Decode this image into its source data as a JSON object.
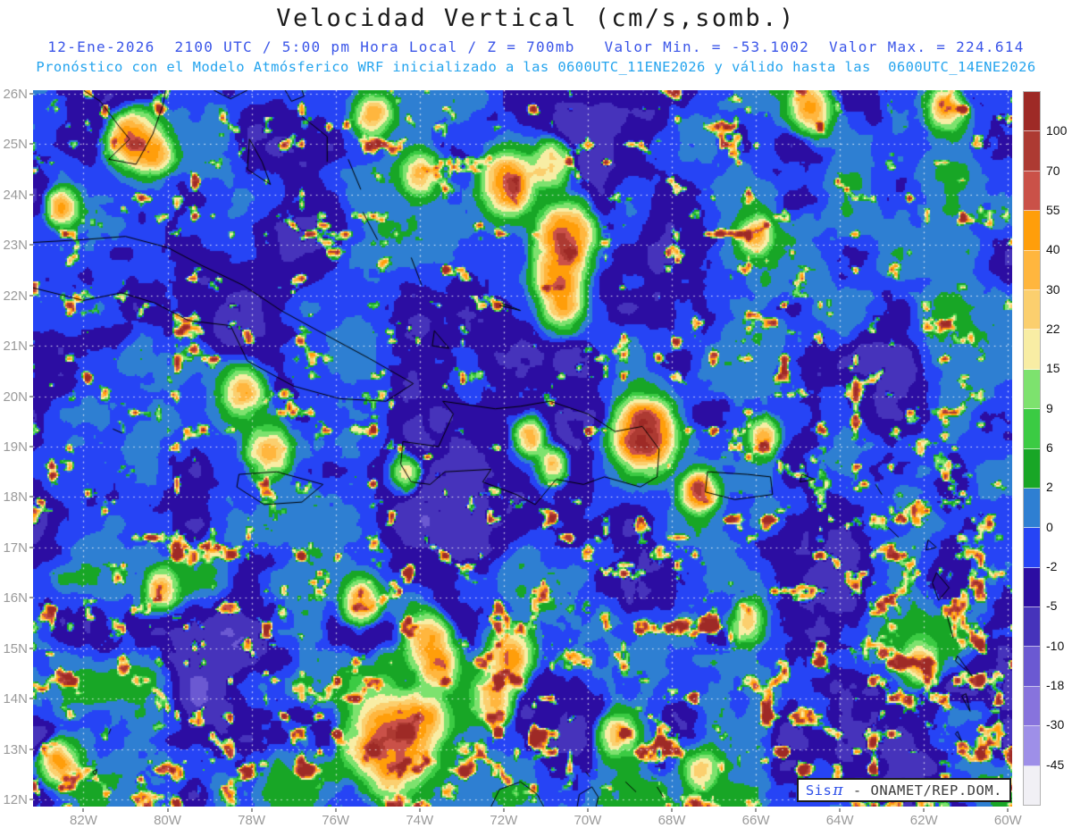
{
  "header": {
    "title": "Velocidad Vertical (cm/s,somb.)",
    "line2": "12-Ene-2026  2100 UTC / 5:00 pm Hora Local / Z = 700mb   Valor Min. = -53.1002  Valor Max. = 224.614",
    "line3": "Pronóstico con el Modelo Atmósferico WRF inicializado a las 0600UTC_11ENE2026 y válido hasta las  0600UTC_14ENE2026"
  },
  "watermark": {
    "brand": "Sis",
    "pi": "π",
    "org": " - ONAMET/REP.DOM."
  },
  "colors": {
    "title": "#1a1a1a",
    "header_blue": "#3a55e8",
    "header_cyan": "#25a4ee",
    "axis_label_gray": "#9a9a9a",
    "colorbar_label": "#111111",
    "coastline": "#000000",
    "gridline": "#ffffff",
    "watermark_brand_blue": "#2d4fe8",
    "watermark_text_gray": "#3c3c3c"
  },
  "chart_data": {
    "type": "heatmap",
    "title": "Velocidad Vertical (cm/s,somb.)",
    "variable": "Velocidad Vertical",
    "units": "cm/s",
    "shading_note": "somb.",
    "level": "700mb",
    "valid_time": "12-Ene-2026 2100 UTC / 5:00 pm Hora Local",
    "model": "WRF",
    "initialized": "0600UTC_11ENE2026",
    "valid_until": "0600UTC_14ENE2026",
    "value_min": -53.1002,
    "value_max": 224.614,
    "lon_range": [
      -83.2,
      -59.9
    ],
    "lat_range": [
      11.86,
      26.07
    ],
    "x_tick_labels": [
      "82W",
      "80W",
      "78W",
      "76W",
      "74W",
      "72W",
      "70W",
      "68W",
      "66W",
      "64W",
      "62W",
      "60W"
    ],
    "x_tick_lons": [
      -82,
      -80,
      -78,
      -76,
      -74,
      -72,
      -70,
      -68,
      -66,
      -64,
      -62,
      -60
    ],
    "y_tick_labels": [
      "26N",
      "25N",
      "24N",
      "23N",
      "22N",
      "21N",
      "20N",
      "19N",
      "18N",
      "17N",
      "16N",
      "15N",
      "14N",
      "13N",
      "12N"
    ],
    "y_tick_lats": [
      26,
      25,
      24,
      23,
      22,
      21,
      20,
      19,
      18,
      17,
      16,
      15,
      14,
      13,
      12
    ],
    "grid": {
      "lat_step_deg": 1,
      "lon_step_deg": 2,
      "style": "white dotted"
    },
    "legend_position": "right",
    "colorbar": {
      "levels": [
        100,
        70,
        55,
        40,
        30,
        22,
        15,
        9,
        6,
        2,
        0,
        -2,
        -5,
        -10,
        -18,
        -30,
        -45
      ],
      "colors_top_to_bottom": [
        "#9e2a26",
        "#ad3a32",
        "#ca5148",
        "#ff9e0a",
        "#ffb63e",
        "#fbcf6e",
        "#f8eda4",
        "#7de26e",
        "#3bcb43",
        "#18a626",
        "#2e7fd2",
        "#2644f5",
        "#2c0da2",
        "#4633bb",
        "#6b59d2",
        "#8773dd",
        "#9e8fe8",
        "#f1f0f5"
      ]
    },
    "updraft_cells_approx": [
      [
        25.1,
        -80.85,
        95,
        0.45
      ],
      [
        24.8,
        -80.3,
        55,
        0.35
      ],
      [
        23.75,
        -82.5,
        70,
        0.3
      ],
      [
        25.6,
        -75.1,
        55,
        0.35
      ],
      [
        24.4,
        -74.0,
        45,
        0.35
      ],
      [
        25.7,
        -64.7,
        65,
        0.4
      ],
      [
        25.7,
        -61.5,
        55,
        0.4
      ],
      [
        23.2,
        -66.0,
        50,
        0.32
      ],
      [
        24.2,
        -71.9,
        110,
        0.45
      ],
      [
        23.2,
        -70.5,
        120,
        0.5
      ],
      [
        22.5,
        -70.7,
        90,
        0.45
      ],
      [
        21.8,
        -70.6,
        60,
        0.4
      ],
      [
        24.6,
        -70.9,
        55,
        0.4
      ],
      [
        19.26,
        -68.65,
        190,
        0.5
      ],
      [
        19.2,
        -71.4,
        60,
        0.3
      ],
      [
        18.65,
        -70.85,
        55,
        0.3
      ],
      [
        18.12,
        -67.35,
        120,
        0.3
      ],
      [
        19.2,
        -65.8,
        50,
        0.3
      ],
      [
        18.9,
        -77.6,
        65,
        0.4
      ],
      [
        20.1,
        -78.2,
        60,
        0.4
      ],
      [
        18.45,
        -74.35,
        45,
        0.3
      ],
      [
        16.2,
        -80.1,
        50,
        0.35
      ],
      [
        15.9,
        -75.4,
        55,
        0.35
      ],
      [
        15.2,
        -73.8,
        65,
        0.4
      ],
      [
        14.7,
        -73.6,
        70,
        0.4
      ],
      [
        14.8,
        -71.8,
        75,
        0.4
      ],
      [
        14.0,
        -72.2,
        55,
        0.4
      ],
      [
        13.1,
        -74.7,
        110,
        0.75
      ],
      [
        13.6,
        -73.9,
        60,
        0.45
      ],
      [
        14.7,
        -62.1,
        60,
        0.35
      ],
      [
        15.5,
        -66.2,
        50,
        0.35
      ],
      [
        13.3,
        -69.3,
        50,
        0.4
      ],
      [
        12.6,
        -67.3,
        45,
        0.35
      ],
      [
        12.75,
        -82.6,
        70,
        0.35
      ]
    ],
    "subsidence_patches_approx": [
      [
        18.0,
        -73.5,
        -9,
        1.5
      ],
      [
        21.6,
        -78.3,
        -7,
        1.2
      ],
      [
        25.6,
        -81.5,
        -7,
        1.1
      ],
      [
        16.6,
        -64.5,
        -8,
        1.4
      ],
      [
        13.6,
        -70.5,
        -6,
        1.4
      ],
      [
        14.3,
        -78.8,
        -6,
        1.3
      ],
      [
        23.4,
        -76.8,
        -6,
        1.0
      ],
      [
        20.1,
        -63.1,
        -6,
        1.1
      ],
      [
        25.3,
        -70.3,
        -6,
        1.1
      ],
      [
        12.8,
        -62.5,
        -6,
        1.2
      ]
    ]
  },
  "map": {
    "coastlines": [
      [
        [
          23.05,
          -83.2
        ],
        [
          23.1,
          -82.1
        ],
        [
          23.17,
          -81.0
        ],
        [
          22.95,
          -80.0
        ],
        [
          22.6,
          -79.2
        ],
        [
          22.2,
          -78.2
        ],
        [
          21.7,
          -77.3
        ],
        [
          21.2,
          -76.2
        ],
        [
          20.75,
          -75.2
        ],
        [
          20.25,
          -74.15
        ],
        [
          19.9,
          -74.8
        ],
        [
          19.95,
          -75.9
        ],
        [
          20.2,
          -77.0
        ],
        [
          20.7,
          -78.1
        ],
        [
          21.4,
          -78.5
        ],
        [
          21.5,
          -79.5
        ],
        [
          21.85,
          -80.3
        ],
        [
          22.05,
          -81.1
        ],
        [
          21.9,
          -82.0
        ],
        [
          22.15,
          -83.2
        ]
      ],
      [
        [
          26.07,
          -82.0
        ],
        [
          25.85,
          -81.6
        ],
        [
          25.35,
          -81.15
        ],
        [
          25.1,
          -80.9
        ],
        [
          24.7,
          -81.4
        ],
        [
          24.6,
          -80.75
        ],
        [
          25.2,
          -80.35
        ],
        [
          25.8,
          -80.1
        ],
        [
          26.07,
          -80.05
        ]
      ],
      [
        [
          26.07,
          -78.9
        ],
        [
          25.9,
          -78.5
        ],
        [
          26.07,
          -78.1
        ]
      ],
      [
        [
          26.07,
          -77.2
        ],
        [
          25.85,
          -77.05
        ],
        [
          25.95,
          -76.75
        ],
        [
          26.07,
          -76.8
        ]
      ],
      [
        [
          25.1,
          -78.05
        ],
        [
          24.65,
          -77.75
        ],
        [
          24.2,
          -77.55
        ],
        [
          24.5,
          -78.1
        ],
        [
          25.1,
          -78.05
        ]
      ],
      [
        [
          25.55,
          -76.8
        ],
        [
          25.15,
          -76.2
        ],
        [
          24.65,
          -76.2
        ]
      ],
      [
        [
          24.7,
          -75.7
        ],
        [
          24.1,
          -75.4
        ]
      ],
      [
        [
          23.65,
          -75.35
        ],
        [
          23.1,
          -75.0
        ]
      ],
      [
        [
          22.75,
          -74.2
        ],
        [
          22.2,
          -73.95
        ]
      ],
      [
        [
          21.3,
          -73.65
        ],
        [
          20.95,
          -73.3
        ],
        [
          21.0,
          -73.7
        ],
        [
          21.3,
          -73.65
        ]
      ],
      [
        [
          21.85,
          -72.05
        ],
        [
          21.7,
          -71.6
        ],
        [
          21.8,
          -72.1
        ]
      ],
      [
        [
          18.45,
          -78.3
        ],
        [
          18.5,
          -77.4
        ],
        [
          18.25,
          -76.3
        ],
        [
          17.9,
          -76.8
        ],
        [
          17.85,
          -77.7
        ],
        [
          18.2,
          -78.35
        ],
        [
          18.45,
          -78.3
        ]
      ],
      [
        [
          19.9,
          -73.45
        ],
        [
          19.75,
          -72.2
        ],
        [
          19.8,
          -71.6
        ],
        [
          19.9,
          -70.9
        ],
        [
          19.65,
          -70.0
        ],
        [
          19.3,
          -69.35
        ],
        [
          19.4,
          -68.7
        ],
        [
          18.95,
          -68.3
        ],
        [
          18.4,
          -68.35
        ],
        [
          18.2,
          -68.75
        ],
        [
          18.4,
          -69.6
        ],
        [
          18.25,
          -70.1
        ],
        [
          18.35,
          -70.75
        ],
        [
          17.85,
          -71.25
        ],
        [
          18.05,
          -71.7
        ],
        [
          18.3,
          -72.5
        ],
        [
          18.55,
          -72.3
        ],
        [
          18.5,
          -73.4
        ],
        [
          18.25,
          -73.75
        ],
        [
          18.3,
          -74.2
        ],
        [
          18.65,
          -74.45
        ],
        [
          19.1,
          -74.4
        ],
        [
          19.0,
          -73.55
        ],
        [
          19.65,
          -73.2
        ],
        [
          19.9,
          -73.45
        ]
      ],
      [
        [
          18.5,
          -67.15
        ],
        [
          18.45,
          -66.2
        ],
        [
          18.4,
          -65.65
        ],
        [
          18.05,
          -65.6
        ],
        [
          17.95,
          -66.5
        ],
        [
          18.1,
          -67.2
        ],
        [
          18.5,
          -67.15
        ]
      ],
      [
        [
          19.35,
          -81.3
        ],
        [
          19.27,
          -81.08
        ]
      ],
      [
        [
          18.45,
          -64.9
        ],
        [
          18.35,
          -64.6
        ],
        [
          18.3,
          -64.95
        ],
        [
          18.45,
          -64.9
        ]
      ],
      [
        [
          18.25,
          -63.15
        ],
        [
          18.05,
          -63.0
        ]
      ],
      [
        [
          17.4,
          -62.85
        ],
        [
          17.2,
          -62.6
        ]
      ],
      [
        [
          17.15,
          -61.9
        ],
        [
          17.0,
          -61.7
        ],
        [
          16.95,
          -61.95
        ],
        [
          17.15,
          -61.9
        ]
      ],
      [
        [
          16.5,
          -61.7
        ],
        [
          16.2,
          -61.4
        ],
        [
          15.95,
          -61.65
        ],
        [
          16.3,
          -61.8
        ],
        [
          16.5,
          -61.7
        ]
      ],
      [
        [
          15.65,
          -61.45
        ],
        [
          15.2,
          -61.3
        ]
      ],
      [
        [
          14.85,
          -61.2
        ],
        [
          14.45,
          -60.85
        ],
        [
          14.75,
          -61.25
        ],
        [
          14.85,
          -61.2
        ]
      ],
      [
        [
          14.1,
          -61.0
        ],
        [
          13.75,
          -60.9
        ],
        [
          14.05,
          -61.1
        ],
        [
          14.1,
          -61.0
        ]
      ],
      [
        [
          13.35,
          -61.2
        ],
        [
          13.15,
          -61.1
        ],
        [
          13.3,
          -61.25
        ],
        [
          13.35,
          -61.2
        ]
      ],
      [
        [
          12.25,
          -61.75
        ],
        [
          12.0,
          -61.6
        ],
        [
          12.2,
          -61.8
        ],
        [
          12.25,
          -61.75
        ]
      ],
      [
        [
          12.6,
          -81.68
        ],
        [
          12.48,
          -81.72
        ],
        [
          12.55,
          -81.78
        ],
        [
          12.6,
          -81.68
        ]
      ],
      [
        [
          13.4,
          -81.35
        ],
        [
          13.3,
          -81.4
        ]
      ],
      [
        [
          11.86,
          -72.3
        ],
        [
          12.2,
          -72.1
        ],
        [
          12.35,
          -71.6
        ],
        [
          12.1,
          -71.2
        ],
        [
          11.86,
          -71.05
        ]
      ],
      [
        [
          11.86,
          -70.25
        ],
        [
          12.1,
          -70.2
        ],
        [
          12.25,
          -69.9
        ],
        [
          12.05,
          -69.75
        ],
        [
          11.86,
          -69.8
        ]
      ],
      [
        [
          12.55,
          -70.05
        ],
        [
          12.45,
          -69.95
        ]
      ],
      [
        [
          12.35,
          -69.1
        ],
        [
          12.15,
          -68.85
        ]
      ],
      [
        [
          12.25,
          -68.35
        ],
        [
          12.05,
          -68.2
        ]
      ]
    ]
  }
}
